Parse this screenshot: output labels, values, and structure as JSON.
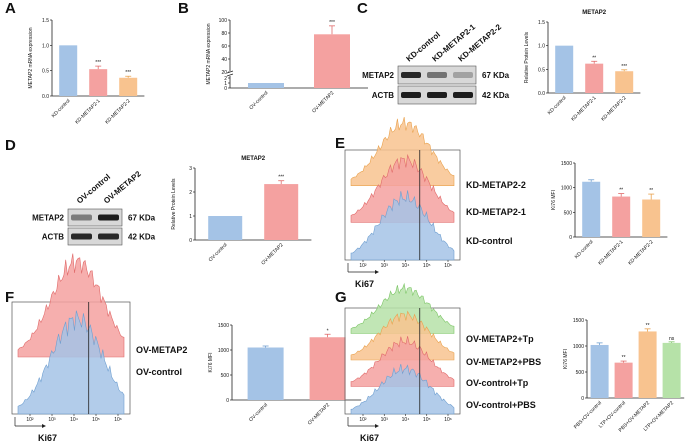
{
  "panels": [
    "A",
    "B",
    "C",
    "D",
    "E",
    "F",
    "G"
  ],
  "colors": {
    "blue": "#a4c3e6",
    "blue_line": "#6f9fd0",
    "red": "#f4a1a0",
    "red_line": "#e06a6a",
    "orange": "#f8c38f",
    "orange_line": "#e9a24e",
    "green": "#b6e2a8",
    "green_line": "#7cc566"
  },
  "blots": {
    "C": {
      "lanes": [
        "KD-control",
        "KD-METAP2-1",
        "KD-METAP2-2"
      ],
      "rows": [
        {
          "protein": "METAP2",
          "size": "67 KDa",
          "intensity": [
            0.85,
            0.45,
            0.2
          ]
        },
        {
          "protein": "ACTB",
          "size": "42 KDa",
          "intensity": [
            0.9,
            0.9,
            0.9
          ]
        }
      ]
    },
    "D": {
      "lanes": [
        "OV-control",
        "OV-METAP2"
      ],
      "rows": [
        {
          "protein": "METAP2",
          "size": "67 KDa",
          "intensity": [
            0.4,
            0.9
          ]
        },
        {
          "protein": "ACTB",
          "size": "42 KDa",
          "intensity": [
            0.85,
            0.85
          ]
        }
      ]
    }
  },
  "flows": {
    "E": {
      "xlabel": "Ki67",
      "labels": [
        "KD-METAP2-2",
        "KD-METAP2-1",
        "KD-control"
      ],
      "colors": [
        "orange",
        "red",
        "blue"
      ],
      "ticks": [
        "10²",
        "10³",
        "10⁴",
        "10⁵",
        "10⁶"
      ]
    },
    "F": {
      "xlabel": "Ki67",
      "labels": [
        "OV-METAP2",
        "OV-control"
      ],
      "colors": [
        "red",
        "blue"
      ],
      "ticks": [
        "10²",
        "10³",
        "10⁴",
        "10⁵",
        "10⁶"
      ]
    },
    "G": {
      "xlabel": "Ki67",
      "labels": [
        "OV-METAP2+Tp",
        "OV-METAP2+PBS",
        "OV-control+Tp",
        "OV-control+PBS"
      ],
      "colors": [
        "green",
        "orange",
        "red",
        "blue"
      ],
      "ticks": [
        "10²",
        "10³",
        "10⁴",
        "10⁵",
        "10⁶"
      ]
    }
  },
  "chart_data": [
    {
      "panel": "A",
      "type": "bar",
      "categories": [
        "KD-control",
        "KD-METAP2-1",
        "KD-METAP2-2"
      ],
      "values": [
        1.0,
        0.53,
        0.36
      ],
      "errors": [
        0,
        0.06,
        0.03
      ],
      "colors": [
        "blue",
        "red",
        "orange"
      ],
      "sig": [
        "",
        "***",
        "***"
      ],
      "ylabel": "METAP2 mRNA expression",
      "ylim": [
        0,
        1.5
      ],
      "yticks": [
        0.0,
        0.5,
        1.0,
        1.5
      ]
    },
    {
      "panel": "B",
      "type": "bar",
      "categories": [
        "OV-control",
        "OV-METAP2"
      ],
      "values": [
        1,
        78
      ],
      "errors": [
        0,
        13
      ],
      "colors": [
        "blue",
        "red"
      ],
      "sig": [
        "",
        "***"
      ],
      "ylabel": "METAP2 mRNA expression",
      "ylim": [
        0,
        100
      ],
      "yticks": [
        0,
        1,
        2,
        20,
        40,
        60,
        80,
        100
      ],
      "axis_break": [
        2,
        20
      ]
    },
    {
      "panel": "C",
      "type": "bar",
      "title": "METAP2",
      "categories": [
        "KD-control",
        "KD-METAP2-1",
        "KD-METAP2-2"
      ],
      "values": [
        1.0,
        0.62,
        0.46
      ],
      "errors": [
        0,
        0.05,
        0.03
      ],
      "colors": [
        "blue",
        "red",
        "orange"
      ],
      "sig": [
        "",
        "**",
        "***"
      ],
      "ylabel": "Relative Protein Levels",
      "ylim": [
        0,
        1.5
      ],
      "yticks": [
        0.0,
        0.5,
        1.0,
        1.5
      ]
    },
    {
      "panel": "D",
      "type": "bar",
      "title": "METAP2",
      "categories": [
        "OV-control",
        "OV-METAP2"
      ],
      "values": [
        1.0,
        2.33
      ],
      "errors": [
        0,
        0.14
      ],
      "colors": [
        "blue",
        "red"
      ],
      "sig": [
        "",
        "***"
      ],
      "ylabel": "Relative Protein Levels",
      "ylim": [
        0,
        3
      ],
      "yticks": [
        0,
        1,
        2,
        3
      ]
    },
    {
      "panel": "E",
      "type": "bar",
      "categories": [
        "KD-control",
        "KD-METAP2-1",
        "KD-METAP2-2"
      ],
      "values": [
        1120,
        820,
        760
      ],
      "errors": [
        40,
        60,
        110
      ],
      "colors": [
        "blue",
        "red",
        "orange"
      ],
      "sig": [
        "",
        "**",
        "**"
      ],
      "ylabel": "Ki76 MFI",
      "ylim": [
        0,
        1500
      ],
      "yticks": [
        0,
        500,
        1000,
        1500
      ]
    },
    {
      "panel": "F",
      "type": "bar",
      "categories": [
        "OV-control",
        "OV-METAP2"
      ],
      "values": [
        1050,
        1255
      ],
      "errors": [
        30,
        60
      ],
      "colors": [
        "blue",
        "red"
      ],
      "sig": [
        "",
        "*"
      ],
      "ylabel": "Ki76 MFI",
      "ylim": [
        0,
        1500
      ],
      "yticks": [
        0,
        500,
        1000,
        1500
      ]
    },
    {
      "panel": "G",
      "type": "bar",
      "categories": [
        "PBS+OV-control",
        "LTP+OV-control",
        "PBS+OV-METAP2",
        "LTP+OV-METAP2"
      ],
      "values": [
        1020,
        680,
        1280,
        1060
      ],
      "errors": [
        40,
        30,
        50,
        20
      ],
      "colors": [
        "blue",
        "red",
        "orange",
        "green"
      ],
      "sig": [
        "",
        "**",
        "**",
        "ns"
      ],
      "ylabel": "Ki76 MFI",
      "ylim": [
        0,
        1500
      ],
      "yticks": [
        0,
        500,
        1000,
        1500
      ]
    }
  ]
}
